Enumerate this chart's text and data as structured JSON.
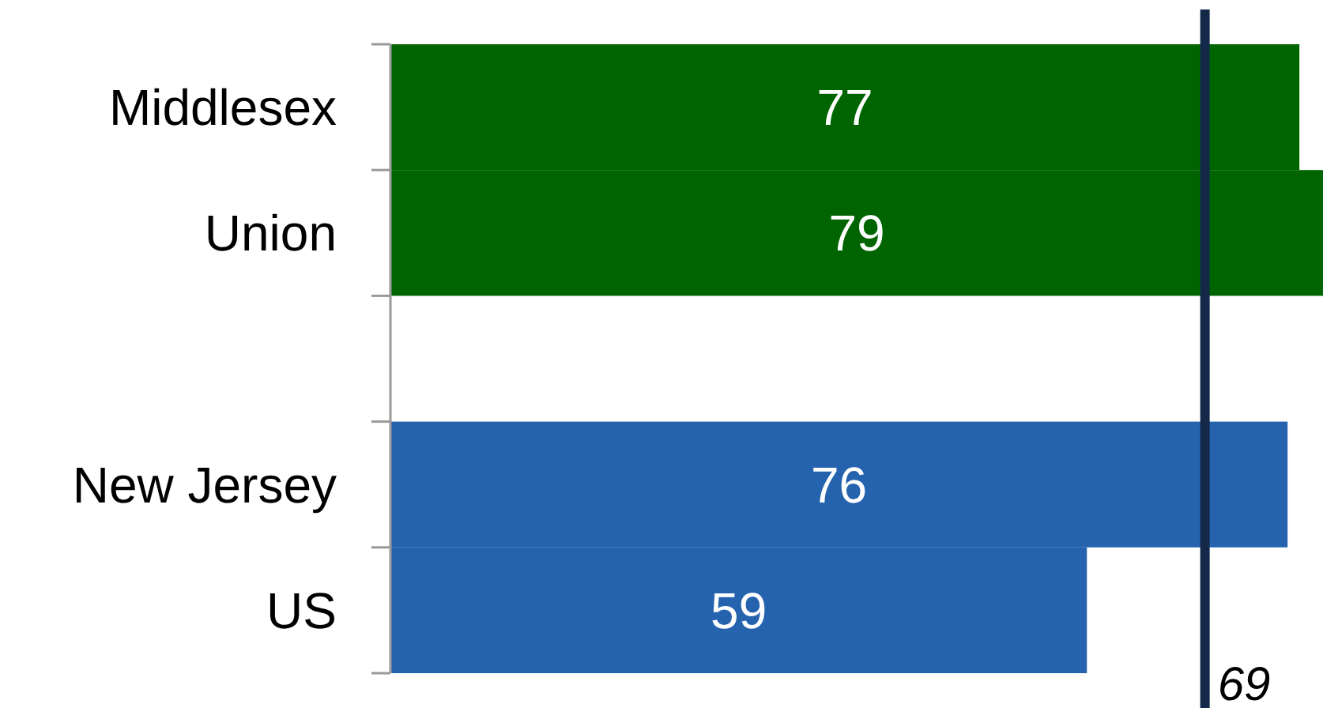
{
  "chart_data": {
    "type": "bar",
    "orientation": "horizontal",
    "categories": [
      "Middlesex",
      "Union",
      null,
      "New Jersey",
      "US"
    ],
    "values": [
      77,
      79,
      null,
      76,
      59
    ],
    "colors": [
      "#006400",
      "#006400",
      null,
      "#2563ae",
      "#2563ae"
    ],
    "data_labels": true,
    "ref_lines": [
      {
        "axis": "x",
        "value": 69,
        "label": "69",
        "color": "#14284a"
      }
    ]
  }
}
